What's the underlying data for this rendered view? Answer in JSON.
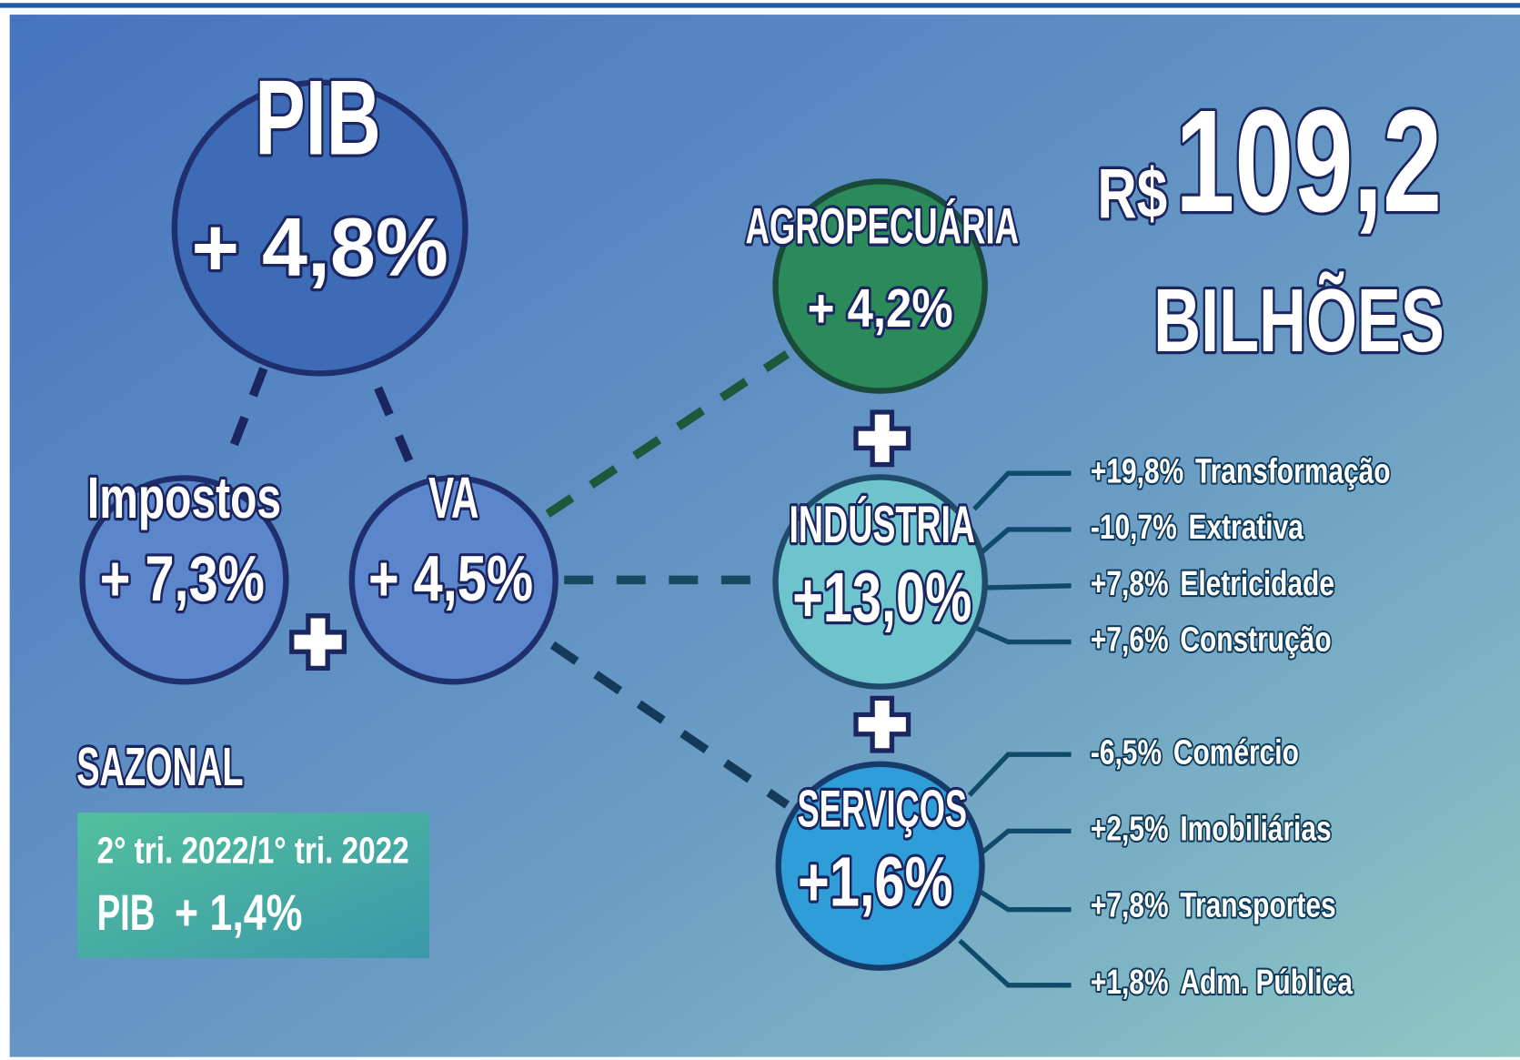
{
  "pib": {
    "label": "PIB",
    "value": "+ 4,8%"
  },
  "impostos": {
    "label": "Impostos",
    "value": "+ 7,3%"
  },
  "va": {
    "label": "VA",
    "value": "+ 4,5%"
  },
  "agropecuaria": {
    "label": "AGROPECUÁRIA",
    "value": "+ 4,2%"
  },
  "industria": {
    "label": "INDÚSTRIA",
    "value": "+13,0%",
    "items": [
      {
        "value": "+19,8%",
        "label": "Transformação"
      },
      {
        "value": "-10,7%",
        "label": "Extrativa"
      },
      {
        "value": "+7,8%",
        "label": "Eletricidade"
      },
      {
        "value": "+7,6%",
        "label": "Construção"
      }
    ]
  },
  "servicos": {
    "label": "SERVIÇOS",
    "value": "+1,6%",
    "items": [
      {
        "value": "-6,5%",
        "label": "Comércio"
      },
      {
        "value": "+2,5%",
        "label": "Imobiliárias"
      },
      {
        "value": "+7,8%",
        "label": "Transportes"
      },
      {
        "value": "+1,8%",
        "label": "Adm. Pública"
      }
    ]
  },
  "total": {
    "currency": "R$",
    "amount": "109,2",
    "unit": "BILHÕES"
  },
  "sazonal": {
    "title": "SAZONAL",
    "period": "2° tri. 2022/1° tri. 2022",
    "label": "PIB",
    "value": "+ 1,4%"
  }
}
